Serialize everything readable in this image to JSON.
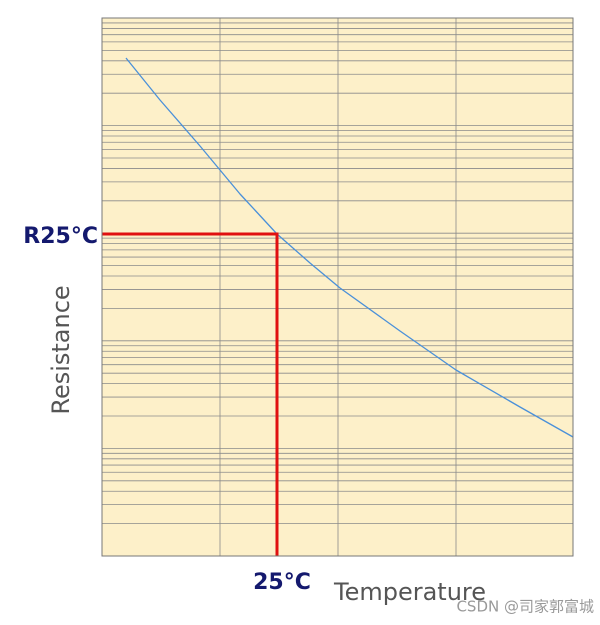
{
  "diagram": {
    "r25_label": "R25°C",
    "t25_label": "25°C",
    "x_label": "Temperature",
    "y_label": "Resistance",
    "watermark": "CSDN @司家郭富城"
  }
}
